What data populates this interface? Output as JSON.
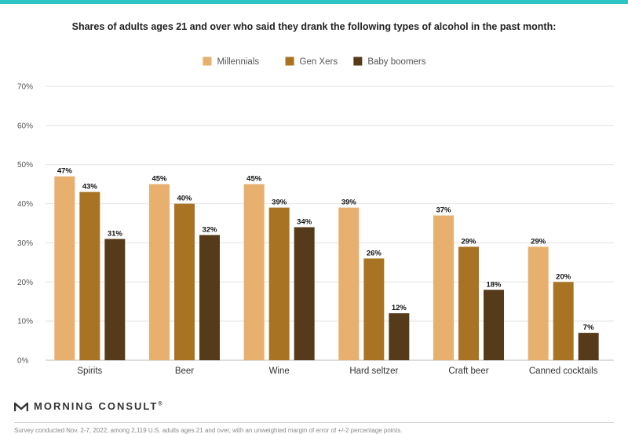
{
  "header": {
    "accent_color": "#2ec4c4"
  },
  "chart_data": {
    "type": "bar",
    "title": "Shares of adults ages 21 and over who said they drank the following types of alcohol in the past month:",
    "xlabel": "",
    "ylabel": "",
    "ylim": [
      0,
      70
    ],
    "yticks": [
      0,
      10,
      20,
      30,
      40,
      50,
      60,
      70
    ],
    "ytick_labels": [
      "0%",
      "10%",
      "20%",
      "30%",
      "40%",
      "50%",
      "60%",
      "70%"
    ],
    "grid": true,
    "legend": "top-center",
    "value_suffix": "%",
    "categories": [
      "Spirits",
      "Beer",
      "Wine",
      "Hard seltzer",
      "Craft beer",
      "Canned cocktails"
    ],
    "series": [
      {
        "name": "Millennials",
        "color": "#e8b06e",
        "values": [
          47,
          45,
          45,
          39,
          37,
          29
        ]
      },
      {
        "name": "Gen Xers",
        "color": "#a87424",
        "values": [
          43,
          40,
          39,
          26,
          29,
          20
        ]
      },
      {
        "name": "Baby boomers",
        "color": "#553b1a",
        "values": [
          31,
          32,
          34,
          12,
          18,
          7
        ]
      }
    ]
  },
  "footer": {
    "brand": "MORNING CONSULT",
    "trademark": "®",
    "note": "Survey conducted Nov. 2-7, 2022, among 2,119 U.S. adults ages 21 and over, with an unweighted margin of error of +/-2 percentage points."
  }
}
